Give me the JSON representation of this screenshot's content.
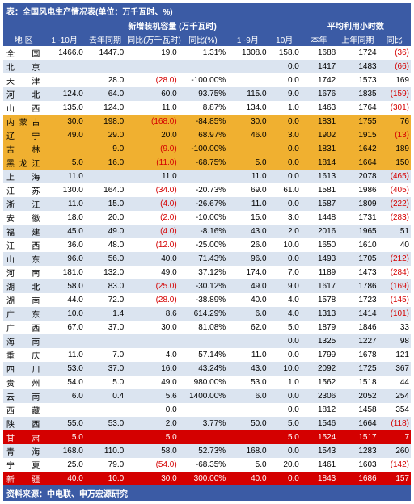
{
  "title": "表：全国风电生产情况表(单位：万千瓦时、%)",
  "footer": "资料来源：中电联、申万宏源研究",
  "header_groups": {
    "g1": "新增装机容量 (万千瓦时)",
    "g2": "平均利用小时数"
  },
  "columns": [
    "地  区",
    "1~10月",
    "去年同期",
    "同比(万千瓦时)",
    "同比(%)",
    "1~9月",
    "10月",
    "本年",
    "上年同期",
    "同比"
  ],
  "col_widths": [
    "10%",
    "10%",
    "10%",
    "13%",
    "12%",
    "10%",
    "8%",
    "9%",
    "10%",
    "8%"
  ],
  "colors": {
    "header_bg": "#3b5ba5",
    "header_fg": "#ffffff",
    "stripe_even": "#ffffff",
    "stripe_odd": "#dbe4f0",
    "hl_yellow": "#f0b030",
    "hl_red": "#d40000",
    "neg_text": "#d40000"
  },
  "highlight_yellow": [
    6,
    7,
    8,
    9
  ],
  "highlight_red": [
    29,
    32
  ],
  "rows": [
    {
      "r": "全 国",
      "c": [
        "1466.0",
        "1447.0",
        "19.0",
        "1.31%",
        "1308.0",
        "158.0",
        "1688",
        "1724",
        "(36)"
      ],
      "n": [
        0,
        0,
        0,
        0,
        0,
        0,
        0,
        0,
        1
      ]
    },
    {
      "r": "北 京",
      "c": [
        "",
        "",
        "",
        "",
        "",
        "0.0",
        "1417",
        "1483",
        "(66)"
      ],
      "n": [
        0,
        0,
        0,
        0,
        0,
        0,
        0,
        0,
        1
      ]
    },
    {
      "r": "天 津",
      "c": [
        "",
        "28.0",
        "(28.0)",
        "-100.00%",
        "",
        "0.0",
        "1742",
        "1573",
        "169"
      ],
      "n": [
        0,
        0,
        1,
        0,
        0,
        0,
        0,
        0,
        0
      ]
    },
    {
      "r": "河 北",
      "c": [
        "124.0",
        "64.0",
        "60.0",
        "93.75%",
        "115.0",
        "9.0",
        "1676",
        "1835",
        "(159)"
      ],
      "n": [
        0,
        0,
        0,
        0,
        0,
        0,
        0,
        0,
        1
      ]
    },
    {
      "r": "山 西",
      "c": [
        "135.0",
        "124.0",
        "11.0",
        "8.87%",
        "134.0",
        "1.0",
        "1463",
        "1764",
        "(301)"
      ],
      "n": [
        0,
        0,
        0,
        0,
        0,
        0,
        0,
        0,
        1
      ]
    },
    {
      "r": "内蒙古",
      "c": [
        "30.0",
        "198.0",
        "(168.0)",
        "-84.85%",
        "30.0",
        "0.0",
        "1831",
        "1755",
        "76"
      ],
      "n": [
        0,
        0,
        1,
        0,
        0,
        0,
        0,
        0,
        0
      ]
    },
    {
      "r": "辽 宁",
      "c": [
        "49.0",
        "29.0",
        "20.0",
        "68.97%",
        "46.0",
        "3.0",
        "1902",
        "1915",
        "(13)"
      ],
      "n": [
        0,
        0,
        0,
        0,
        0,
        0,
        0,
        0,
        1
      ]
    },
    {
      "r": "吉 林",
      "c": [
        "",
        "9.0",
        "(9.0)",
        "-100.00%",
        "",
        "0.0",
        "1831",
        "1642",
        "189"
      ],
      "n": [
        0,
        0,
        1,
        0,
        0,
        0,
        0,
        0,
        0
      ]
    },
    {
      "r": "黑龙江",
      "c": [
        "5.0",
        "16.0",
        "(11.0)",
        "-68.75%",
        "5.0",
        "0.0",
        "1814",
        "1664",
        "150"
      ],
      "n": [
        0,
        0,
        1,
        0,
        0,
        0,
        0,
        0,
        0
      ]
    },
    {
      "r": "上 海",
      "c": [
        "11.0",
        "",
        "11.0",
        "",
        "11.0",
        "0.0",
        "1613",
        "2078",
        "(465)"
      ],
      "n": [
        0,
        0,
        0,
        0,
        0,
        0,
        0,
        0,
        1
      ]
    },
    {
      "r": "江 苏",
      "c": [
        "130.0",
        "164.0",
        "(34.0)",
        "-20.73%",
        "69.0",
        "61.0",
        "1581",
        "1986",
        "(405)"
      ],
      "n": [
        0,
        0,
        1,
        0,
        0,
        0,
        0,
        0,
        1
      ]
    },
    {
      "r": "浙 江",
      "c": [
        "11.0",
        "15.0",
        "(4.0)",
        "-26.67%",
        "11.0",
        "0.0",
        "1587",
        "1809",
        "(222)"
      ],
      "n": [
        0,
        0,
        1,
        0,
        0,
        0,
        0,
        0,
        1
      ]
    },
    {
      "r": "安 徽",
      "c": [
        "18.0",
        "20.0",
        "(2.0)",
        "-10.00%",
        "15.0",
        "3.0",
        "1448",
        "1731",
        "(283)"
      ],
      "n": [
        0,
        0,
        1,
        0,
        0,
        0,
        0,
        0,
        1
      ]
    },
    {
      "r": "福 建",
      "c": [
        "45.0",
        "49.0",
        "(4.0)",
        "-8.16%",
        "43.0",
        "2.0",
        "2016",
        "1965",
        "51"
      ],
      "n": [
        0,
        0,
        1,
        0,
        0,
        0,
        0,
        0,
        0
      ]
    },
    {
      "r": "江 西",
      "c": [
        "36.0",
        "48.0",
        "(12.0)",
        "-25.00%",
        "26.0",
        "10.0",
        "1650",
        "1610",
        "40"
      ],
      "n": [
        0,
        0,
        1,
        0,
        0,
        0,
        0,
        0,
        0
      ]
    },
    {
      "r": "山 东",
      "c": [
        "96.0",
        "56.0",
        "40.0",
        "71.43%",
        "96.0",
        "0.0",
        "1493",
        "1705",
        "(212)"
      ],
      "n": [
        0,
        0,
        0,
        0,
        0,
        0,
        0,
        0,
        1
      ]
    },
    {
      "r": "河 南",
      "c": [
        "181.0",
        "132.0",
        "49.0",
        "37.12%",
        "174.0",
        "7.0",
        "1189",
        "1473",
        "(284)"
      ],
      "n": [
        0,
        0,
        0,
        0,
        0,
        0,
        0,
        0,
        1
      ]
    },
    {
      "r": "湖 北",
      "c": [
        "58.0",
        "83.0",
        "(25.0)",
        "-30.12%",
        "49.0",
        "9.0",
        "1617",
        "1786",
        "(169)"
      ],
      "n": [
        0,
        0,
        1,
        0,
        0,
        0,
        0,
        0,
        1
      ]
    },
    {
      "r": "湖 南",
      "c": [
        "44.0",
        "72.0",
        "(28.0)",
        "-38.89%",
        "40.0",
        "4.0",
        "1578",
        "1723",
        "(145)"
      ],
      "n": [
        0,
        0,
        1,
        0,
        0,
        0,
        0,
        0,
        1
      ]
    },
    {
      "r": "广 东",
      "c": [
        "10.0",
        "1.4",
        "8.6",
        "614.29%",
        "6.0",
        "4.0",
        "1313",
        "1414",
        "(101)"
      ],
      "n": [
        0,
        0,
        0,
        0,
        0,
        0,
        0,
        0,
        1
      ]
    },
    {
      "r": "广 西",
      "c": [
        "67.0",
        "37.0",
        "30.0",
        "81.08%",
        "62.0",
        "5.0",
        "1879",
        "1846",
        "33"
      ],
      "n": [
        0,
        0,
        0,
        0,
        0,
        0,
        0,
        0,
        0
      ]
    },
    {
      "r": "海 南",
      "c": [
        "",
        "",
        "",
        "",
        "",
        "0.0",
        "1325",
        "1227",
        "98"
      ],
      "n": [
        0,
        0,
        0,
        0,
        0,
        0,
        0,
        0,
        0
      ]
    },
    {
      "r": "重 庆",
      "c": [
        "11.0",
        "7.0",
        "4.0",
        "57.14%",
        "11.0",
        "0.0",
        "1799",
        "1678",
        "121"
      ],
      "n": [
        0,
        0,
        0,
        0,
        0,
        0,
        0,
        0,
        0
      ]
    },
    {
      "r": "四 川",
      "c": [
        "53.0",
        "37.0",
        "16.0",
        "43.24%",
        "43.0",
        "10.0",
        "2092",
        "1725",
        "367"
      ],
      "n": [
        0,
        0,
        0,
        0,
        0,
        0,
        0,
        0,
        0
      ]
    },
    {
      "r": "贵 州",
      "c": [
        "54.0",
        "5.0",
        "49.0",
        "980.00%",
        "53.0",
        "1.0",
        "1562",
        "1518",
        "44"
      ],
      "n": [
        0,
        0,
        0,
        0,
        0,
        0,
        0,
        0,
        0
      ]
    },
    {
      "r": "云 南",
      "c": [
        "6.0",
        "0.4",
        "5.6",
        "1400.00%",
        "6.0",
        "0.0",
        "2306",
        "2052",
        "254"
      ],
      "n": [
        0,
        0,
        0,
        0,
        0,
        0,
        0,
        0,
        0
      ]
    },
    {
      "r": "西 藏",
      "c": [
        "",
        "",
        "0.0",
        "",
        "",
        "0.0",
        "1812",
        "1458",
        "354"
      ],
      "n": [
        0,
        0,
        0,
        0,
        0,
        0,
        0,
        0,
        0
      ]
    },
    {
      "r": "陕 西",
      "c": [
        "55.0",
        "53.0",
        "2.0",
        "3.77%",
        "50.0",
        "5.0",
        "1546",
        "1664",
        "(118)"
      ],
      "n": [
        0,
        0,
        0,
        0,
        0,
        0,
        0,
        0,
        1
      ]
    },
    {
      "r": "甘 肃",
      "c": [
        "5.0",
        "",
        "5.0",
        "",
        "",
        "5.0",
        "1524",
        "1517",
        "7"
      ],
      "n": [
        0,
        0,
        0,
        0,
        0,
        0,
        0,
        0,
        0
      ]
    },
    {
      "r": "青 海",
      "c": [
        "168.0",
        "110.0",
        "58.0",
        "52.73%",
        "168.0",
        "0.0",
        "1543",
        "1283",
        "260"
      ],
      "n": [
        0,
        0,
        0,
        0,
        0,
        0,
        0,
        0,
        0
      ]
    },
    {
      "r": "宁 夏",
      "c": [
        "25.0",
        "79.0",
        "(54.0)",
        "-68.35%",
        "5.0",
        "20.0",
        "1461",
        "1603",
        "(142)"
      ],
      "n": [
        0,
        0,
        1,
        0,
        0,
        0,
        0,
        0,
        1
      ]
    },
    {
      "r": "新 疆",
      "c": [
        "40.0",
        "10.0",
        "30.0",
        "300.00%",
        "40.0",
        "0.0",
        "1843",
        "1686",
        "157"
      ],
      "n": [
        0,
        0,
        0,
        0,
        0,
        0,
        0,
        0,
        0
      ]
    }
  ]
}
